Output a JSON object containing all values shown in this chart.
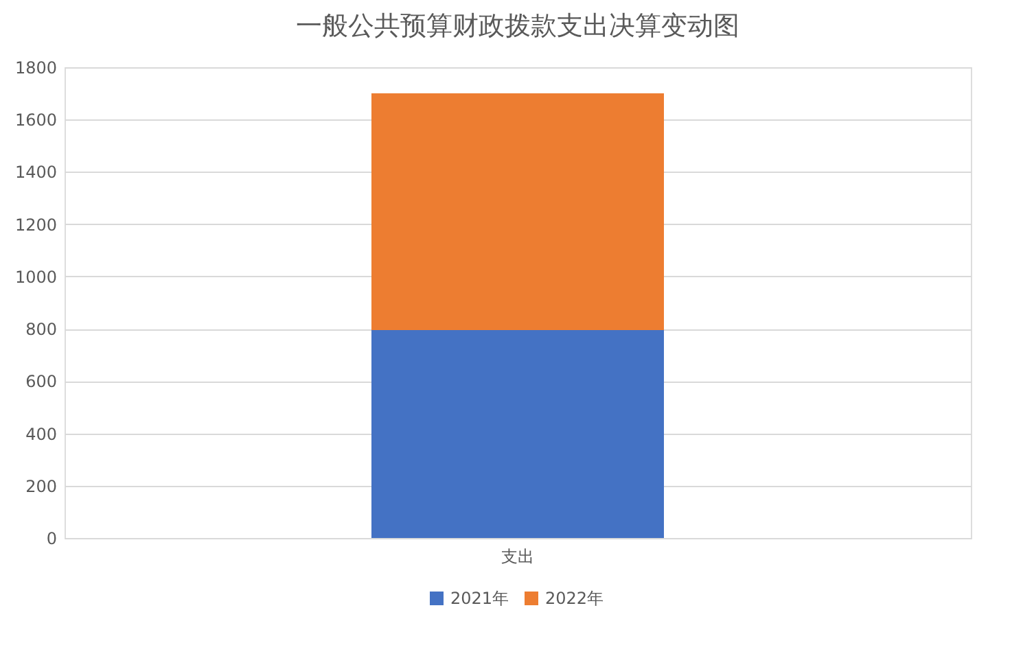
{
  "chart_data": {
    "type": "bar",
    "title": "一般公共预算财政拨款支出决算变动图",
    "categories": [
      "支出"
    ],
    "stacked": true,
    "series": [
      {
        "name": "2021年",
        "color": "#4472c4",
        "values": [
          795
        ]
      },
      {
        "name": "2022年",
        "color": "#ed7d31",
        "values": [
          905
        ]
      }
    ],
    "ylim": [
      0,
      1800
    ],
    "yticks": [
      0,
      200,
      400,
      600,
      800,
      1000,
      1200,
      1400,
      1600,
      1800
    ],
    "grid": "y",
    "legend": "bottom"
  }
}
